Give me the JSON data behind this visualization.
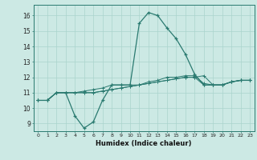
{
  "title": "",
  "xlabel": "Humidex (Indice chaleur)",
  "ylabel": "",
  "background_color": "#cce9e4",
  "grid_color": "#aad4cc",
  "line_color": "#2a7a70",
  "xlim": [
    -0.5,
    23.5
  ],
  "ylim": [
    8.5,
    16.7
  ],
  "xticks": [
    0,
    1,
    2,
    3,
    4,
    5,
    6,
    7,
    8,
    9,
    10,
    11,
    12,
    13,
    14,
    15,
    16,
    17,
    18,
    19,
    20,
    21,
    22,
    23
  ],
  "yticks": [
    9,
    10,
    11,
    12,
    13,
    14,
    15,
    16
  ],
  "series": [
    [
      10.5,
      10.5,
      11.0,
      11.0,
      9.5,
      8.7,
      9.1,
      10.5,
      11.5,
      11.5,
      11.5,
      15.5,
      16.2,
      16.0,
      15.2,
      14.5,
      13.5,
      12.2,
      11.5,
      11.5,
      11.5,
      11.7,
      11.8,
      11.8
    ],
    [
      10.5,
      10.5,
      11.0,
      11.0,
      11.0,
      11.0,
      11.0,
      11.1,
      11.2,
      11.3,
      11.4,
      11.5,
      11.6,
      11.7,
      11.8,
      11.9,
      12.0,
      12.0,
      12.1,
      11.5,
      11.5,
      11.7,
      11.8,
      11.8
    ],
    [
      10.5,
      10.5,
      11.0,
      11.0,
      11.0,
      11.1,
      11.2,
      11.3,
      11.5,
      11.5,
      11.5,
      11.5,
      11.7,
      11.8,
      12.0,
      12.0,
      12.1,
      12.1,
      11.6,
      11.5,
      11.5,
      11.7,
      11.8,
      11.8
    ],
    [
      10.5,
      10.5,
      11.0,
      11.0,
      11.0,
      11.0,
      11.0,
      11.1,
      11.2,
      11.3,
      11.4,
      11.5,
      11.6,
      11.7,
      11.8,
      11.9,
      12.0,
      12.0,
      11.5,
      11.5,
      11.5,
      11.7,
      11.8,
      11.8
    ]
  ]
}
